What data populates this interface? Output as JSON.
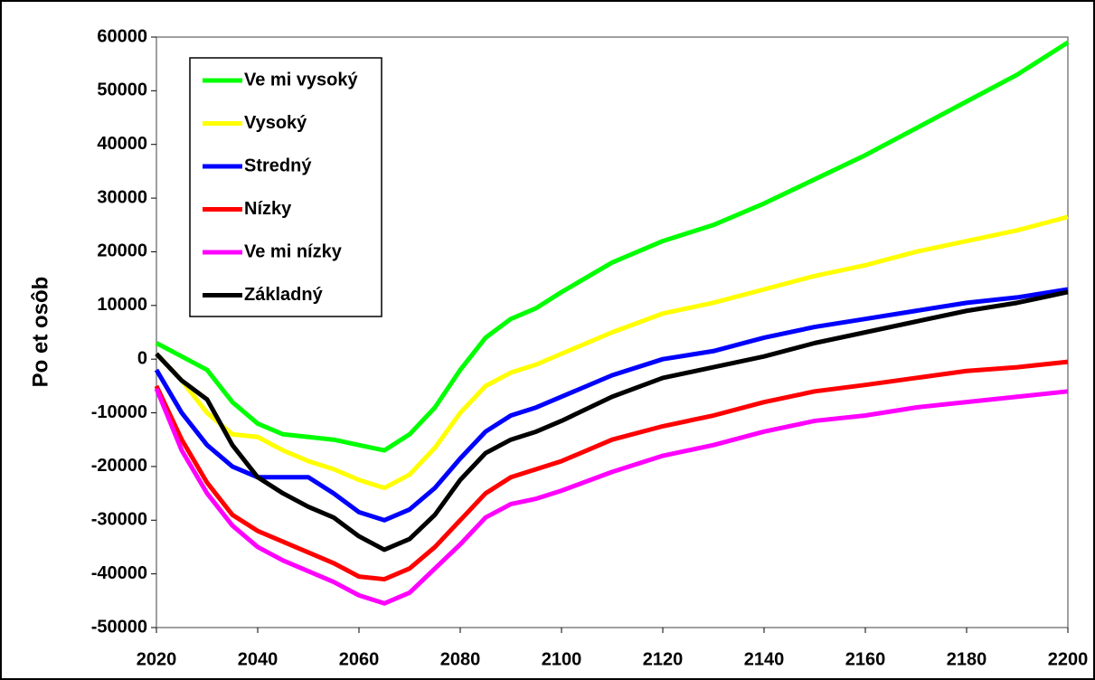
{
  "chart_data": {
    "type": "line",
    "y_label": "Po et osôb",
    "x": [
      2020,
      2025,
      2030,
      2035,
      2040,
      2045,
      2050,
      2055,
      2060,
      2065,
      2070,
      2075,
      2080,
      2085,
      2090,
      2095,
      2100,
      2110,
      2120,
      2130,
      2140,
      2150,
      2160,
      2170,
      2180,
      2190,
      2200
    ],
    "xlim": [
      2020,
      2200
    ],
    "xticks": [
      2020,
      2040,
      2060,
      2080,
      2100,
      2120,
      2140,
      2160,
      2180,
      2200
    ],
    "ylim": [
      -50000,
      60000
    ],
    "yticks": [
      -50000,
      -40000,
      -30000,
      -20000,
      -10000,
      0,
      10000,
      20000,
      30000,
      40000,
      50000,
      60000
    ],
    "grid": false,
    "legend": "upper left",
    "series": [
      {
        "name": "Ve mi vysoký",
        "color": "#00ff00",
        "values": [
          3000,
          500,
          -2000,
          -8000,
          -12000,
          -14000,
          -14500,
          -15000,
          -16000,
          -17000,
          -14000,
          -9000,
          -2000,
          4000,
          7500,
          9500,
          12500,
          18000,
          22000,
          25000,
          29000,
          33500,
          38000,
          43000,
          48000,
          53000,
          59000
        ]
      },
      {
        "name": "Vysoký",
        "color": "#ffff00",
        "values": [
          1000,
          -4000,
          -10000,
          -14000,
          -14500,
          -17000,
          -19000,
          -20500,
          -22500,
          -24000,
          -21500,
          -16500,
          -10000,
          -5000,
          -2500,
          -1000,
          1000,
          5000,
          8500,
          10500,
          13000,
          15500,
          17500,
          20000,
          22000,
          24000,
          26500
        ]
      },
      {
        "name": "Stredný",
        "color": "#0000ff",
        "values": [
          -2000,
          -10000,
          -16000,
          -20000,
          -22000,
          -22000,
          -22000,
          -25000,
          -28500,
          -30000,
          -28000,
          -24000,
          -18500,
          -13500,
          -10500,
          -9000,
          -7000,
          -3000,
          0,
          1500,
          4000,
          6000,
          7500,
          9000,
          10500,
          11500,
          13000
        ]
      },
      {
        "name": "Nízky",
        "color": "#ff0000",
        "values": [
          -5000,
          -15000,
          -23000,
          -29000,
          -32000,
          -34000,
          -36000,
          -38000,
          -40500,
          -41000,
          -39000,
          -35000,
          -30000,
          -25000,
          -22000,
          -20500,
          -19000,
          -15000,
          -12500,
          -10500,
          -8000,
          -6000,
          -4800,
          -3500,
          -2200,
          -1500,
          -500
        ]
      },
      {
        "name": "Ve mi nízky",
        "color": "#ff00ff",
        "values": [
          -5500,
          -17000,
          -25000,
          -31000,
          -35000,
          -37500,
          -39500,
          -41500,
          -44000,
          -45500,
          -43500,
          -39000,
          -34500,
          -29500,
          -27000,
          -26000,
          -24500,
          -21000,
          -18000,
          -16000,
          -13500,
          -11500,
          -10500,
          -9000,
          -8000,
          -7000,
          -6000
        ]
      },
      {
        "name": "Základný",
        "color": "#000000",
        "values": [
          1000,
          -4000,
          -7500,
          -16000,
          -22000,
          -25000,
          -27500,
          -29500,
          -33000,
          -35500,
          -33500,
          -29000,
          -22500,
          -17500,
          -15000,
          -13500,
          -11500,
          -7000,
          -3500,
          -1500,
          500,
          3000,
          5000,
          7000,
          9000,
          10500,
          12500
        ]
      }
    ]
  }
}
